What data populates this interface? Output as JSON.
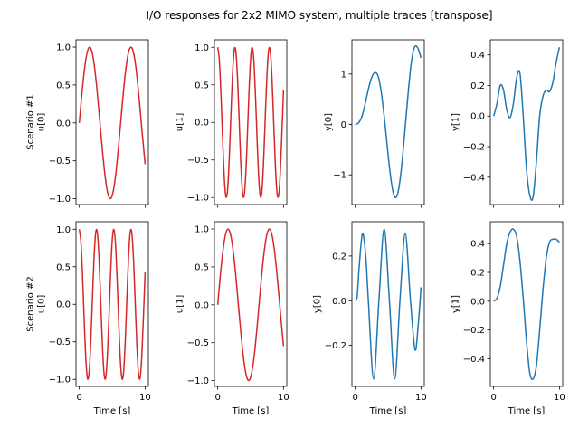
{
  "chart_data": {
    "title": "I/O responses for 2x2 MIMO system, multiple traces [transpose]",
    "colors": {
      "input": "#d62728",
      "output": "#1f77b4"
    },
    "xlabel": "Time [s]",
    "xlim": [
      0,
      10
    ],
    "xticks": [
      0,
      10
    ],
    "grid": false,
    "panels": [
      {
        "row": 0,
        "col": 0,
        "type": "line",
        "ylabel": [
          "Scenario #1",
          "u[0]"
        ],
        "color": "input",
        "yticks": [
          -1.0,
          -0.5,
          0.0,
          0.5,
          1.0
        ],
        "ytick_labels": [
          "−1.0",
          "−0.5",
          "0.0",
          "0.5",
          "1.0"
        ],
        "x": [
          0,
          0.5,
          1,
          1.5,
          2,
          2.5,
          3,
          3.5,
          4,
          4.5,
          5,
          5.5,
          6,
          6.5,
          7,
          7.5,
          8,
          8.5,
          9,
          9.5,
          10
        ],
        "y": [
          0,
          0.479,
          0.841,
          0.997,
          0.909,
          0.598,
          0.141,
          -0.351,
          -0.757,
          -0.978,
          -0.959,
          -0.706,
          -0.279,
          0.215,
          0.657,
          0.938,
          0.989,
          0.798,
          0.412,
          -0.075,
          -0.544
        ]
      },
      {
        "row": 0,
        "col": 1,
        "type": "line",
        "ylabel": [
          "u[1]"
        ],
        "color": "input",
        "yticks": [
          -1.0,
          -0.5,
          0.0,
          0.5,
          1.0
        ],
        "ytick_labels": [
          "−1.0",
          "−0.5",
          "0.0",
          "0.5",
          "1.0"
        ],
        "x": [
          0,
          0.25,
          0.5,
          0.75,
          1,
          1.25,
          1.5,
          1.75,
          2,
          2.25,
          2.5,
          2.75,
          3,
          3.25,
          3.5,
          3.75,
          4,
          4.25,
          4.5,
          4.75,
          5,
          5.25,
          5.5,
          5.75,
          6,
          6.25,
          6.5,
          6.75,
          7,
          7.25,
          7.5,
          7.75,
          8,
          8.25,
          8.5,
          8.75,
          9,
          9.25,
          9.5,
          9.75,
          10
        ],
        "y": [
          1,
          0.825,
          0.362,
          -0.227,
          -0.737,
          -0.99,
          -0.897,
          -0.49,
          0.087,
          0.635,
          0.96,
          0.951,
          0.608,
          0.054,
          -0.52,
          -0.911,
          -0.985,
          -0.714,
          -0.193,
          0.392,
          0.844,
          0.999,
          0.807,
          0.333,
          -0.26,
          -0.76,
          -0.994,
          -0.884,
          -0.461,
          0.12,
          0.66,
          0.968,
          0.939,
          0.581,
          0.02,
          -0.547,
          -0.924,
          -0.978,
          -0.688,
          -0.16,
          0.424
        ]
      },
      {
        "row": 0,
        "col": 2,
        "type": "line",
        "ylabel": [
          "y[0]"
        ],
        "color": "output",
        "yticks": [
          -1,
          0,
          1
        ],
        "ytick_labels": [
          "−1",
          "0",
          "1"
        ],
        "x": [
          0,
          0.5,
          1,
          1.5,
          2,
          2.5,
          3,
          3.5,
          4,
          4.5,
          5,
          5.5,
          6,
          6.5,
          7,
          7.5,
          8,
          8.5,
          9,
          9.5,
          10
        ],
        "y": [
          0,
          0.03,
          0.15,
          0.4,
          0.7,
          0.93,
          1.03,
          0.95,
          0.6,
          0.05,
          -0.6,
          -1.15,
          -1.44,
          -1.35,
          -0.9,
          -0.2,
          0.55,
          1.2,
          1.53,
          1.52,
          1.32
        ]
      },
      {
        "row": 0,
        "col": 3,
        "type": "line",
        "ylabel": [
          "y[1]"
        ],
        "color": "output",
        "yticks": [
          -0.4,
          -0.2,
          0.0,
          0.2,
          0.4
        ],
        "ytick_labels": [
          "−0.4",
          "−0.2",
          "0.0",
          "0.2",
          "0.4"
        ],
        "x": [
          0,
          0.5,
          1,
          1.5,
          2,
          2.5,
          3,
          3.5,
          4,
          4.5,
          5,
          5.5,
          6,
          6.5,
          7,
          7.5,
          8,
          8.5,
          9,
          9.5,
          10
        ],
        "y": [
          0,
          0.08,
          0.2,
          0.17,
          0.04,
          -0.01,
          0.08,
          0.25,
          0.28,
          0.0,
          -0.35,
          -0.52,
          -0.53,
          -0.3,
          0.0,
          0.13,
          0.17,
          0.16,
          0.22,
          0.35,
          0.45
        ]
      },
      {
        "row": 1,
        "col": 0,
        "type": "line",
        "ylabel": [
          "Scenario #2",
          "u[0]"
        ],
        "color": "input",
        "yticks": [
          -1.0,
          -0.5,
          0.0,
          0.5,
          1.0
        ],
        "ytick_labels": [
          "−1.0",
          "−0.5",
          "0.0",
          "0.5",
          "1.0"
        ],
        "x": [
          0,
          0.25,
          0.5,
          0.75,
          1,
          1.25,
          1.5,
          1.75,
          2,
          2.25,
          2.5,
          2.75,
          3,
          3.25,
          3.5,
          3.75,
          4,
          4.25,
          4.5,
          4.75,
          5,
          5.25,
          5.5,
          5.75,
          6,
          6.25,
          6.5,
          6.75,
          7,
          7.25,
          7.5,
          7.75,
          8,
          8.25,
          8.5,
          8.75,
          9,
          9.25,
          9.5,
          9.75,
          10
        ],
        "y": [
          1,
          0.825,
          0.362,
          -0.227,
          -0.737,
          -0.99,
          -0.897,
          -0.49,
          0.087,
          0.635,
          0.96,
          0.951,
          0.608,
          0.054,
          -0.52,
          -0.911,
          -0.985,
          -0.714,
          -0.193,
          0.392,
          0.844,
          0.999,
          0.807,
          0.333,
          -0.26,
          -0.76,
          -0.994,
          -0.884,
          -0.461,
          0.12,
          0.66,
          0.968,
          0.939,
          0.581,
          0.02,
          -0.547,
          -0.924,
          -0.978,
          -0.688,
          -0.16,
          0.424
        ]
      },
      {
        "row": 1,
        "col": 1,
        "type": "line",
        "ylabel": [
          "u[1]"
        ],
        "color": "input",
        "yticks": [
          -1.0,
          -0.5,
          0.0,
          0.5,
          1.0
        ],
        "ytick_labels": [
          "−1.0",
          "−0.5",
          "0.0",
          "0.5",
          "1.0"
        ],
        "x": [
          0,
          0.5,
          1,
          1.5,
          2,
          2.5,
          3,
          3.5,
          4,
          4.5,
          5,
          5.5,
          6,
          6.5,
          7,
          7.5,
          8,
          8.5,
          9,
          9.5,
          10
        ],
        "y": [
          0,
          0.479,
          0.841,
          0.997,
          0.909,
          0.598,
          0.141,
          -0.351,
          -0.757,
          -0.978,
          -0.959,
          -0.706,
          -0.279,
          0.215,
          0.657,
          0.938,
          0.989,
          0.798,
          0.412,
          -0.075,
          -0.544
        ]
      },
      {
        "row": 1,
        "col": 2,
        "type": "line",
        "ylabel": [
          "y[0]"
        ],
        "color": "output",
        "yticks": [
          -0.2,
          0.0,
          0.2
        ],
        "ytick_labels": [
          "−0.2",
          "0.0",
          "0.2"
        ],
        "x": [
          0,
          0.3,
          0.6,
          1.1,
          1.6,
          2.0,
          2.8,
          3.6,
          4.4,
          5.2,
          6.0,
          6.8,
          7.6,
          8.4,
          9.1,
          9.6,
          10
        ],
        "y": [
          0,
          0.02,
          0.15,
          0.3,
          0.2,
          0,
          -0.35,
          0,
          0.32,
          0,
          -0.35,
          0,
          0.3,
          0,
          -0.22,
          -0.1,
          0.06
        ]
      },
      {
        "row": 1,
        "col": 3,
        "type": "line",
        "ylabel": [
          "y[1]"
        ],
        "color": "output",
        "yticks": [
          -0.4,
          -0.2,
          0.0,
          0.2,
          0.4
        ],
        "ytick_labels": [
          "−0.4",
          "−0.2",
          "0.0",
          "0.2",
          "0.4"
        ],
        "x": [
          0,
          0.5,
          1,
          1.5,
          2,
          2.5,
          3,
          3.5,
          4,
          4.5,
          5,
          5.5,
          6,
          6.5,
          7,
          7.5,
          8,
          8.5,
          9,
          9.5,
          10
        ],
        "y": [
          0,
          0.02,
          0.1,
          0.25,
          0.4,
          0.48,
          0.5,
          0.45,
          0.28,
          0.02,
          -0.28,
          -0.5,
          -0.54,
          -0.45,
          -0.2,
          0.08,
          0.3,
          0.41,
          0.43,
          0.43,
          0.41
        ]
      }
    ]
  }
}
